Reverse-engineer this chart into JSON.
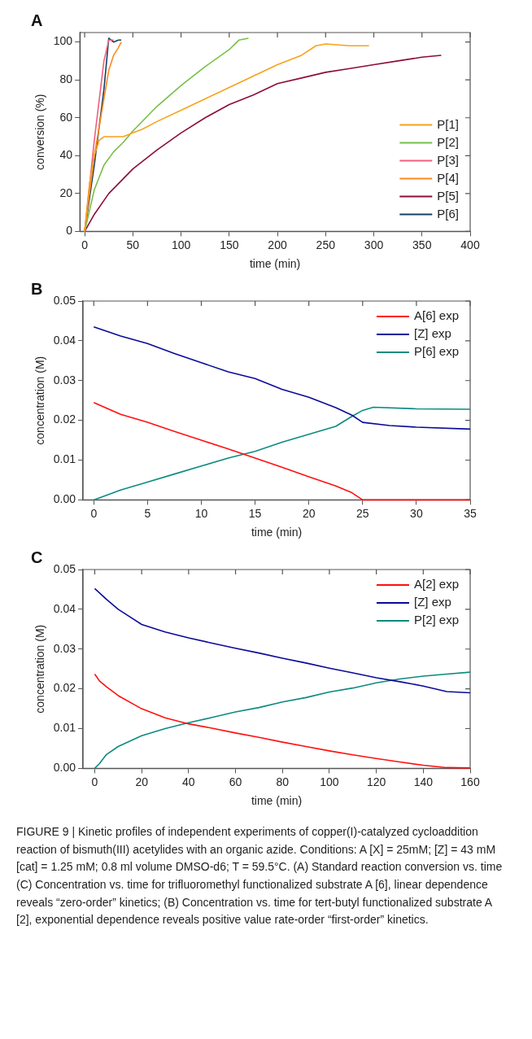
{
  "chart_data": [
    {
      "type": "line",
      "title": "A",
      "xlabel": "time (min)",
      "ylabel": "conversion (%)",
      "xlim": [
        -5,
        400
      ],
      "xticks": [
        0,
        50,
        100,
        150,
        200,
        250,
        300,
        350,
        400
      ],
      "ylim": [
        0,
        105
      ],
      "yticks": [
        0,
        20,
        40,
        60,
        80,
        100
      ],
      "legend": "bottom right",
      "series": [
        {
          "name": "P[1]",
          "color": "#f7a21b",
          "x": [
            0,
            5,
            10,
            15,
            20,
            30,
            40,
            50,
            60,
            75,
            100,
            125,
            150,
            175,
            200,
            225,
            240,
            250,
            275,
            295
          ],
          "values": [
            0,
            25,
            40,
            48,
            50,
            50,
            50,
            52,
            54,
            58,
            64,
            70,
            76,
            82,
            88,
            93,
            98,
            99,
            98,
            98
          ]
        },
        {
          "name": "P[2]",
          "color": "#77bf45",
          "x": [
            0,
            10,
            20,
            30,
            40,
            50,
            75,
            100,
            125,
            150,
            160,
            170
          ],
          "values": [
            0,
            22,
            35,
            42,
            47,
            53,
            66,
            77,
            87,
            96,
            101,
            102
          ]
        },
        {
          "name": "P[3]",
          "color": "#f0607e",
          "x": [
            0,
            10,
            20,
            25,
            30
          ],
          "values": [
            0,
            48,
            90,
            101,
            101
          ]
        },
        {
          "name": "P[4]",
          "color": "#ff8a1c",
          "x": [
            0,
            10,
            20,
            25,
            30,
            35,
            38
          ],
          "values": [
            0,
            40,
            70,
            85,
            93,
            97,
            100
          ]
        },
        {
          "name": "P[5]",
          "color": "#8b0d3c",
          "x": [
            0,
            10,
            25,
            50,
            75,
            100,
            125,
            150,
            175,
            200,
            225,
            250,
            275,
            300,
            325,
            350,
            370
          ],
          "values": [
            0,
            9,
            20,
            33,
            43,
            52,
            60,
            67,
            72,
            78,
            81,
            84,
            86,
            88,
            90,
            92,
            93
          ]
        },
        {
          "name": "P[6]",
          "color": "#173f66",
          "x": [
            0,
            10,
            20,
            25,
            30,
            35,
            38
          ],
          "values": [
            0,
            35,
            75,
            102,
            100,
            101,
            101
          ]
        }
      ]
    },
    {
      "type": "line",
      "title": "B",
      "xlabel": "time (min)",
      "ylabel": "concentration (M)",
      "xlim": [
        -1,
        35
      ],
      "xticks": [
        0,
        5,
        10,
        15,
        20,
        25,
        30,
        35
      ],
      "ylim": [
        0,
        0.05
      ],
      "yticks": [
        {
          "value": 0,
          "label": "0.00"
        },
        0.01,
        0.02,
        0.03,
        0.04,
        0.05
      ],
      "legend": "top right",
      "series": [
        {
          "name": "A[6] exp",
          "color": "#ff1010",
          "x": [
            0,
            2.5,
            5,
            7.5,
            10,
            12.5,
            15,
            17.5,
            20,
            22.5,
            24,
            25,
            30,
            35
          ],
          "values": [
            0.0245,
            0.0215,
            0.0195,
            0.0172,
            0.015,
            0.0128,
            0.0105,
            0.0082,
            0.0058,
            0.0035,
            0.0018,
            0,
            0,
            0
          ]
        },
        {
          "name": "[Z] exp",
          "color": "#0a0a9a",
          "x": [
            0,
            2.5,
            5,
            7.5,
            10,
            12.5,
            15,
            17.5,
            20,
            22.5,
            24,
            25,
            27.5,
            30,
            35
          ],
          "values": [
            0.0435,
            0.0412,
            0.0393,
            0.0368,
            0.0345,
            0.0322,
            0.0305,
            0.0278,
            0.0258,
            0.0232,
            0.0213,
            0.0195,
            0.0187,
            0.0183,
            0.0178
          ]
        },
        {
          "name": "P[6] exp",
          "color": "#0d8a80",
          "x": [
            0,
            2.5,
            5,
            7.5,
            10,
            12.5,
            15,
            17.5,
            20,
            22.5,
            24,
            25,
            26,
            30,
            35
          ],
          "values": [
            0,
            0.0025,
            0.0045,
            0.0065,
            0.0085,
            0.0105,
            0.0122,
            0.0145,
            0.0165,
            0.0185,
            0.021,
            0.0225,
            0.0233,
            0.0229,
            0.0228
          ]
        }
      ]
    },
    {
      "type": "line",
      "title": "C",
      "xlabel": "time (min)",
      "ylabel": "concentration (M)",
      "xlim": [
        -5,
        160
      ],
      "xticks": [
        0,
        20,
        40,
        60,
        80,
        100,
        120,
        140,
        160
      ],
      "ylim": [
        0,
        0.05
      ],
      "yticks": [
        {
          "value": 0,
          "label": "0.00"
        },
        0.01,
        0.02,
        0.03,
        0.04,
        0.05
      ],
      "legend": "top right",
      "annotations": [
        "FIGURE 9 | Kinetic profiles of independent experiments of copper(I)-catalyzed cycloaddition reaction of bismuth(III) acetylides with an organic azide. Conditions: A [X] = 25mM; [Z] = 43 mM [cat] = 1.25 mM; 0.8 ml volume DMSO-d6; T = 59.5°C. (A) Standard reaction conversion vs. time (C) Concentration vs. time for trifluoromethyl functionalized substrate A [6], linear dependence reveals “zero-order” kinetics; (B) Concentration vs. time for tert-butyl functionalized substrate A [2], exponential dependence reveals positive value rate-order “first-order” kinetics."
      ],
      "series": [
        {
          "name": "A[2] exp",
          "color": "#ff1010",
          "x": [
            0,
            2,
            5,
            10,
            20,
            30,
            40,
            50,
            60,
            70,
            80,
            90,
            100,
            110,
            120,
            130,
            140,
            150,
            160
          ],
          "values": [
            0.0237,
            0.022,
            0.0205,
            0.0183,
            0.015,
            0.0127,
            0.0112,
            0.0101,
            0.0089,
            0.0078,
            0.0066,
            0.0055,
            0.0044,
            0.0034,
            0.0025,
            0.0016,
            0.0008,
            0.0002,
            0.0001
          ]
        },
        {
          "name": "[Z] exp",
          "color": "#0a0a9a",
          "x": [
            0,
            5,
            10,
            20,
            30,
            40,
            50,
            60,
            70,
            80,
            90,
            100,
            110,
            120,
            130,
            140,
            150,
            160
          ],
          "values": [
            0.0452,
            0.0425,
            0.04,
            0.0362,
            0.0343,
            0.0328,
            0.0315,
            0.0302,
            0.029,
            0.0277,
            0.0265,
            0.0252,
            0.024,
            0.0228,
            0.0218,
            0.0207,
            0.0193,
            0.019
          ]
        },
        {
          "name": "P[2] exp",
          "color": "#0d8a80",
          "x": [
            0,
            2,
            5,
            10,
            20,
            30,
            40,
            50,
            60,
            70,
            80,
            90,
            100,
            110,
            120,
            130,
            140,
            150,
            160
          ],
          "values": [
            0,
            0.0012,
            0.0035,
            0.0055,
            0.0082,
            0.01,
            0.0115,
            0.0128,
            0.0142,
            0.0153,
            0.0167,
            0.0178,
            0.0192,
            0.0202,
            0.0215,
            0.0225,
            0.0232,
            0.0237,
            0.0242
          ]
        }
      ]
    }
  ]
}
